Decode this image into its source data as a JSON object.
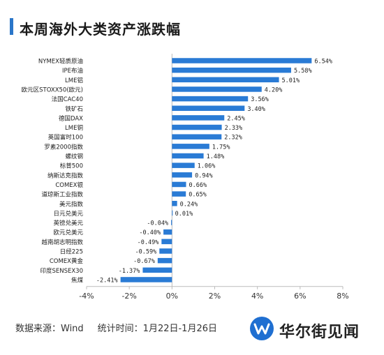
{
  "header": {
    "title": "本周海外大类资产涨跌幅"
  },
  "footer": {
    "source_label": "数据来源：Wind",
    "period_label": "统计时间：1月22日-1月26日"
  },
  "brand": {
    "name": "华尔街见闻",
    "logo_icon": "wallstreetcn-logo-icon"
  },
  "colors": {
    "bar": "#2a7bd5",
    "title_accent": "#2a76c9",
    "axis": "#bbbbbb"
  },
  "chart_data": {
    "type": "bar",
    "orientation": "horizontal",
    "categories": [
      "NYMEX轻质原油",
      "IPE布油",
      "LME铝",
      "欧元区STOXX50(欧元)",
      "法国CAC40",
      "铁矿石",
      "德国DAX",
      "LME铜",
      "英国富时100",
      "罗素2000指数",
      "螺纹钢",
      "标普500",
      "纳斯达克指数",
      "COMEX银",
      "道琼斯工业指数",
      "美元指数",
      "日元兑美元",
      "英镑兑美元",
      "欧元兑美元",
      "越南胡志明指数",
      "日经225",
      "COMEX黄金",
      "印度SENSEX30",
      "焦煤"
    ],
    "values": [
      6.54,
      5.58,
      5.01,
      4.2,
      3.56,
      3.4,
      2.45,
      2.33,
      2.32,
      1.75,
      1.48,
      1.06,
      0.94,
      0.66,
      0.65,
      0.24,
      0.01,
      -0.04,
      -0.4,
      -0.49,
      -0.59,
      -0.67,
      -1.37,
      -2.41
    ],
    "value_labels": [
      "6.54%",
      "5.58%",
      "5.01%",
      "4.20%",
      "3.56%",
      "3.40%",
      "2.45%",
      "2.33%",
      "2.32%",
      "1.75%",
      "1.48%",
      "1.06%",
      "0.94%",
      "0.66%",
      "0.65%",
      "0.24%",
      "0.01%",
      "-0.04%",
      "-0.40%",
      "-0.49%",
      "-0.59%",
      "-0.67%",
      "-1.37%",
      "-2.41%"
    ],
    "xlim": [
      -4,
      8
    ],
    "xticks": [
      -4,
      -2,
      0,
      2,
      4,
      6,
      8
    ],
    "xtick_labels": [
      "-4%",
      "-2%",
      "0%",
      "2%",
      "4%",
      "6%",
      "8%"
    ],
    "grid": false,
    "legend": "none"
  }
}
